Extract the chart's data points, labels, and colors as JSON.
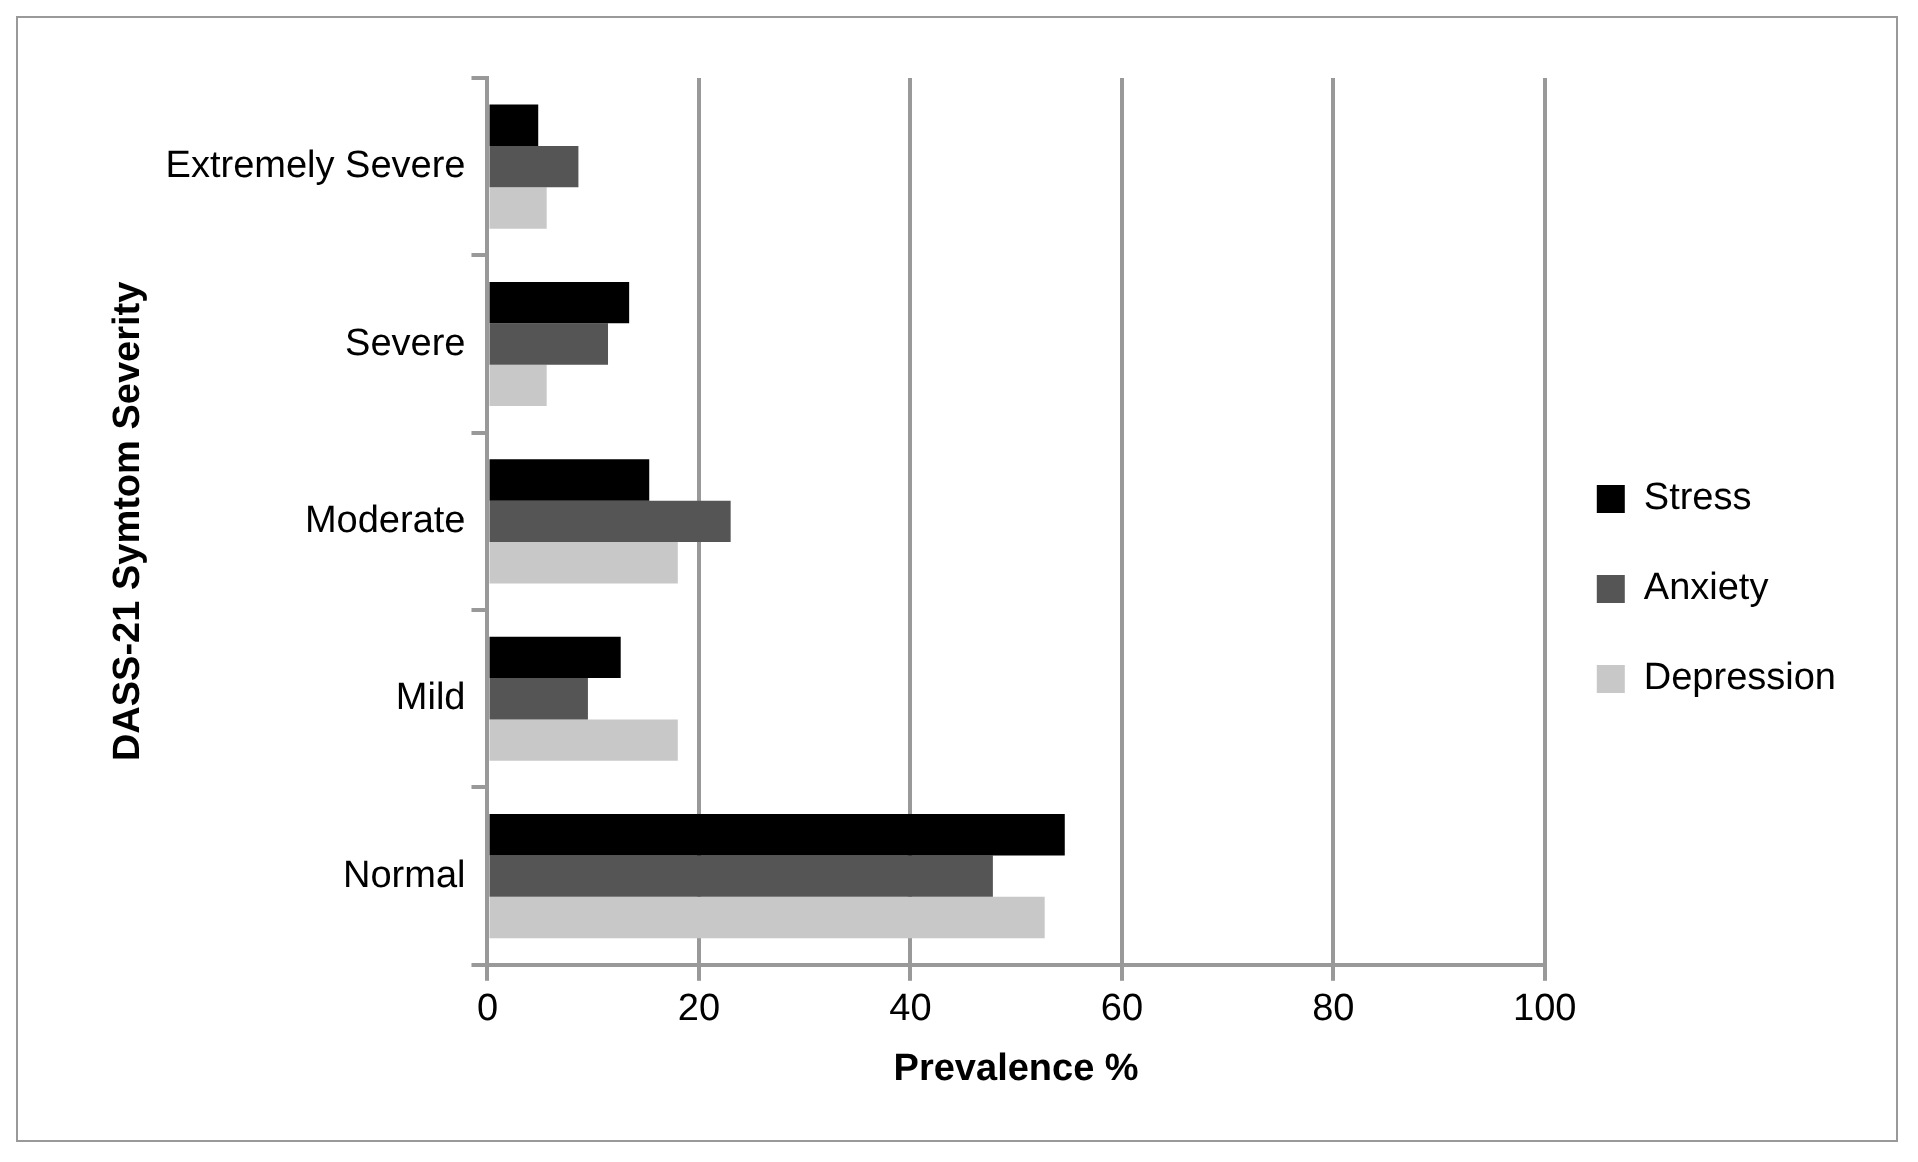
{
  "chart_data": {
    "type": "bar",
    "orientation": "horizontal",
    "xlabel": "Prevalence %",
    "ylabel": "DASS-21 Symtom Severity",
    "categories": [
      "Extremely Severe",
      "Severe",
      "Moderate",
      "Mild",
      "Normal"
    ],
    "series": [
      {
        "name": "Stress",
        "color": "#000000",
        "values": [
          4.8,
          13.4,
          15.3,
          12.6,
          54.6
        ]
      },
      {
        "name": "Anxiety",
        "color": "#555555",
        "values": [
          8.6,
          11.4,
          23.0,
          9.5,
          47.8
        ]
      },
      {
        "name": "Depression",
        "color": "#c8c8c8",
        "values": [
          5.6,
          5.6,
          18.0,
          18.0,
          52.7
        ]
      }
    ],
    "xlim": [
      0,
      100
    ],
    "xticks": [
      0,
      20,
      40,
      60,
      80,
      100
    ],
    "grid": "x",
    "legend": "right"
  }
}
